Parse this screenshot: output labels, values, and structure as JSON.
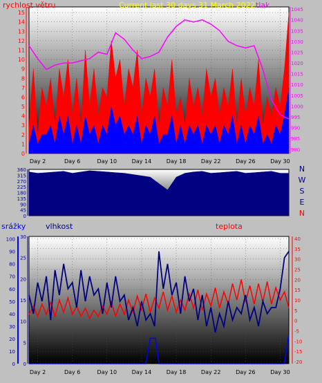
{
  "header": {
    "title": "Current last 30 days 31 March 2022",
    "wind_label": "rychlost větru",
    "pressure_label": "tlak"
  },
  "middle": {
    "compass_labels": [
      "N",
      "W",
      "S",
      "E",
      "N"
    ]
  },
  "bottom": {
    "rain_label": "srážky",
    "humidity_label": "vlhkost",
    "temp_label": "teplota"
  },
  "colors": {
    "title": "#ffff00",
    "wind": "#ff0000",
    "gust": "#0000ff",
    "pressure": "#ff00ff",
    "direction": "#000080",
    "humidity": "#000080",
    "temperature": "#ff0000",
    "rain": "#0000ff",
    "compass": "#000080"
  },
  "chart_data": [
    {
      "type": "area",
      "name": "wind_and_pressure",
      "x_ticks": [
        "Day 2",
        "Day 6",
        "Day 10",
        "Day 14",
        "Day 18",
        "Day 22",
        "Day 26",
        "Day 30"
      ],
      "x_range": [
        1,
        31
      ],
      "y_left_ticks": [
        0,
        1,
        2,
        3,
        4,
        5,
        6,
        7,
        8,
        9,
        10,
        11,
        12,
        13,
        14,
        15
      ],
      "y_left_range": [
        0,
        15.6
      ],
      "y_right_ticks": [
        980,
        985,
        990,
        995,
        1000,
        1005,
        1010,
        1015,
        1020,
        1025,
        1030,
        1035,
        1040,
        1045
      ],
      "y_right_range": [
        978,
        1046
      ],
      "series": [
        {
          "name": "rychlost větru",
          "axis": "left",
          "x": [
            1,
            1.5,
            2,
            2.5,
            3,
            3.5,
            4,
            4.5,
            5,
            5.5,
            6,
            6.5,
            7,
            7.5,
            8,
            8.5,
            9,
            9.5,
            10,
            10.5,
            11,
            11.5,
            12,
            12.5,
            13,
            13.5,
            14,
            14.5,
            15,
            15.5,
            16,
            16.5,
            17,
            17.5,
            18,
            18.5,
            19,
            19.5,
            20,
            20.5,
            21,
            21.5,
            22,
            22.5,
            23,
            23.5,
            24,
            24.5,
            25,
            25.5,
            26,
            26.5,
            27,
            27.5,
            28,
            28.5,
            29,
            29.5,
            30,
            30.5,
            31
          ],
          "values": [
            3,
            9,
            2,
            7,
            5,
            8,
            3,
            9,
            6,
            10,
            4,
            8,
            3,
            11,
            5,
            9,
            4,
            7,
            6,
            12,
            8,
            10,
            5,
            9,
            7,
            11,
            4,
            8,
            6,
            9,
            3,
            7,
            5,
            10,
            4,
            6,
            3,
            8,
            5,
            7,
            4,
            9,
            6,
            8,
            4,
            7,
            5,
            9,
            3,
            8,
            4,
            7,
            5,
            10,
            3,
            6,
            4,
            7,
            5,
            9,
            15
          ]
        },
        {
          "name": "gust",
          "axis": "left",
          "x": [
            1,
            1.5,
            2,
            2.5,
            3,
            3.5,
            4,
            4.5,
            5,
            5.5,
            6,
            6.5,
            7,
            7.5,
            8,
            8.5,
            9,
            9.5,
            10,
            10.5,
            11,
            11.5,
            12,
            12.5,
            13,
            13.5,
            14,
            14.5,
            15,
            15.5,
            16,
            16.5,
            17,
            17.5,
            18,
            18.5,
            19,
            19.5,
            20,
            20.5,
            21,
            21.5,
            22,
            22.5,
            23,
            23.5,
            24,
            24.5,
            25,
            25.5,
            26,
            26.5,
            27,
            27.5,
            28,
            28.5,
            29,
            29.5,
            30,
            30.5,
            31
          ],
          "values": [
            1,
            3,
            1,
            2,
            2,
            3,
            1,
            4,
            2,
            4,
            1,
            3,
            1,
            4,
            2,
            3,
            1,
            3,
            2,
            5,
            3,
            4,
            2,
            3,
            2,
            4,
            1,
            3,
            2,
            4,
            1,
            2,
            2,
            4,
            1,
            3,
            1,
            3,
            2,
            3,
            1,
            3,
            2,
            3,
            1,
            3,
            2,
            4,
            1,
            3,
            1,
            3,
            2,
            4,
            1,
            2,
            1,
            3,
            2,
            4,
            7
          ]
        },
        {
          "name": "tlak",
          "axis": "right",
          "x": [
            1,
            2,
            3,
            4,
            5,
            6,
            7,
            8,
            9,
            10,
            11,
            12,
            13,
            14,
            15,
            16,
            17,
            18,
            19,
            20,
            21,
            22,
            23,
            24,
            25,
            26,
            27,
            28,
            29,
            30,
            31
          ],
          "values": [
            1028,
            1022,
            1017,
            1019,
            1020,
            1020,
            1021,
            1022,
            1025,
            1024,
            1034,
            1031,
            1026,
            1022,
            1023,
            1025,
            1032,
            1037,
            1040,
            1039,
            1040,
            1038,
            1035,
            1030,
            1028,
            1027,
            1028,
            1017,
            1003,
            996,
            994
          ]
        }
      ]
    },
    {
      "type": "area",
      "name": "wind_direction",
      "x_range": [
        1,
        31
      ],
      "y_ticks": [
        0,
        45,
        90,
        135,
        180,
        225,
        270,
        315,
        360
      ],
      "y_range": [
        0,
        360
      ],
      "series": [
        {
          "name": "direction",
          "x": [
            1,
            2,
            3,
            4,
            5,
            6,
            7,
            8,
            9,
            10,
            11,
            12,
            13,
            14,
            15,
            16,
            17,
            18,
            19,
            20,
            21,
            22,
            23,
            24,
            25,
            26,
            27,
            28,
            29,
            30,
            31
          ],
          "values": [
            340,
            330,
            335,
            340,
            345,
            330,
            340,
            350,
            345,
            340,
            335,
            330,
            320,
            310,
            300,
            250,
            200,
            300,
            330,
            340,
            345,
            330,
            335,
            340,
            345,
            330,
            335,
            340,
            345,
            330,
            330
          ]
        }
      ]
    },
    {
      "type": "line",
      "name": "humidity_temperature_rain",
      "x_ticks": [
        "Day 2",
        "Day 6",
        "Day 10",
        "Day 14",
        "Day 18",
        "Day 22",
        "Day 26",
        "Day 30"
      ],
      "x_range": [
        1,
        31
      ],
      "y_left_ticks": [
        0,
        10,
        20,
        30,
        40,
        50,
        60,
        70,
        80,
        90,
        100
      ],
      "y_left_range": [
        0,
        102
      ],
      "y_rain_ticks": [
        0,
        5,
        10,
        15,
        20,
        25,
        30
      ],
      "y_rain_range": [
        0,
        30
      ],
      "y_right_ticks": [
        -20,
        -15,
        -10,
        -5,
        0,
        5,
        10,
        15,
        20,
        25,
        30,
        35,
        40
      ],
      "y_right_range": [
        -21,
        41
      ],
      "series": [
        {
          "name": "vlhkost",
          "axis": "left",
          "x": [
            1,
            1.5,
            2,
            2.5,
            3,
            3.5,
            4,
            4.5,
            5,
            5.5,
            6,
            6.5,
            7,
            7.5,
            8,
            8.5,
            9,
            9.5,
            10,
            10.5,
            11,
            11.5,
            12,
            12.5,
            13,
            13.5,
            14,
            14.5,
            15,
            15.5,
            16,
            16.5,
            17,
            17.5,
            18,
            18.5,
            19,
            19.5,
            20,
            20.5,
            21,
            21.5,
            22,
            22.5,
            23,
            23.5,
            24,
            24.5,
            25,
            25.5,
            26,
            26.5,
            27,
            27.5,
            28,
            28.5,
            29,
            29.5,
            30,
            30.5,
            31
          ],
          "values": [
            55,
            40,
            65,
            50,
            70,
            35,
            75,
            55,
            80,
            60,
            65,
            45,
            75,
            50,
            70,
            55,
            60,
            40,
            65,
            45,
            70,
            50,
            55,
            35,
            45,
            30,
            50,
            35,
            40,
            30,
            90,
            60,
            80,
            55,
            65,
            40,
            70,
            50,
            60,
            35,
            55,
            30,
            45,
            25,
            40,
            30,
            50,
            35,
            45,
            40,
            55,
            35,
            45,
            30,
            50,
            40,
            45,
            45,
            60,
            85,
            90
          ]
        },
        {
          "name": "teplota",
          "axis": "right",
          "x": [
            1,
            1.5,
            2,
            2.5,
            3,
            3.5,
            4,
            4.5,
            5,
            5.5,
            6,
            6.5,
            7,
            7.5,
            8,
            8.5,
            9,
            9.5,
            10,
            10.5,
            11,
            11.5,
            12,
            12.5,
            13,
            13.5,
            14,
            14.5,
            15,
            15.5,
            16,
            16.5,
            17,
            17.5,
            18,
            18.5,
            19,
            19.5,
            20,
            20.5,
            21,
            21.5,
            22,
            22.5,
            23,
            23.5,
            24,
            24.5,
            25,
            25.5,
            26,
            26.5,
            27,
            27.5,
            28,
            28.5,
            29,
            29.5,
            30,
            30.5,
            31
          ],
          "values": [
            3,
            7,
            2,
            8,
            3,
            9,
            2,
            10,
            4,
            11,
            3,
            7,
            2,
            6,
            1,
            5,
            2,
            7,
            3,
            9,
            2,
            8,
            3,
            10,
            4,
            12,
            5,
            13,
            4,
            11,
            6,
            14,
            5,
            12,
            4,
            10,
            5,
            13,
            6,
            15,
            5,
            13,
            7,
            16,
            6,
            14,
            8,
            18,
            10,
            20,
            9,
            17,
            8,
            18,
            9,
            19,
            8,
            16,
            10,
            14,
            6
          ]
        },
        {
          "name": "srážky",
          "axis": "rain",
          "x": [
            1,
            14.5,
            15,
            15.3,
            15.6,
            16,
            30.5,
            31
          ],
          "values": [
            0,
            0,
            6,
            6,
            6,
            0,
            0,
            7
          ]
        }
      ]
    }
  ]
}
